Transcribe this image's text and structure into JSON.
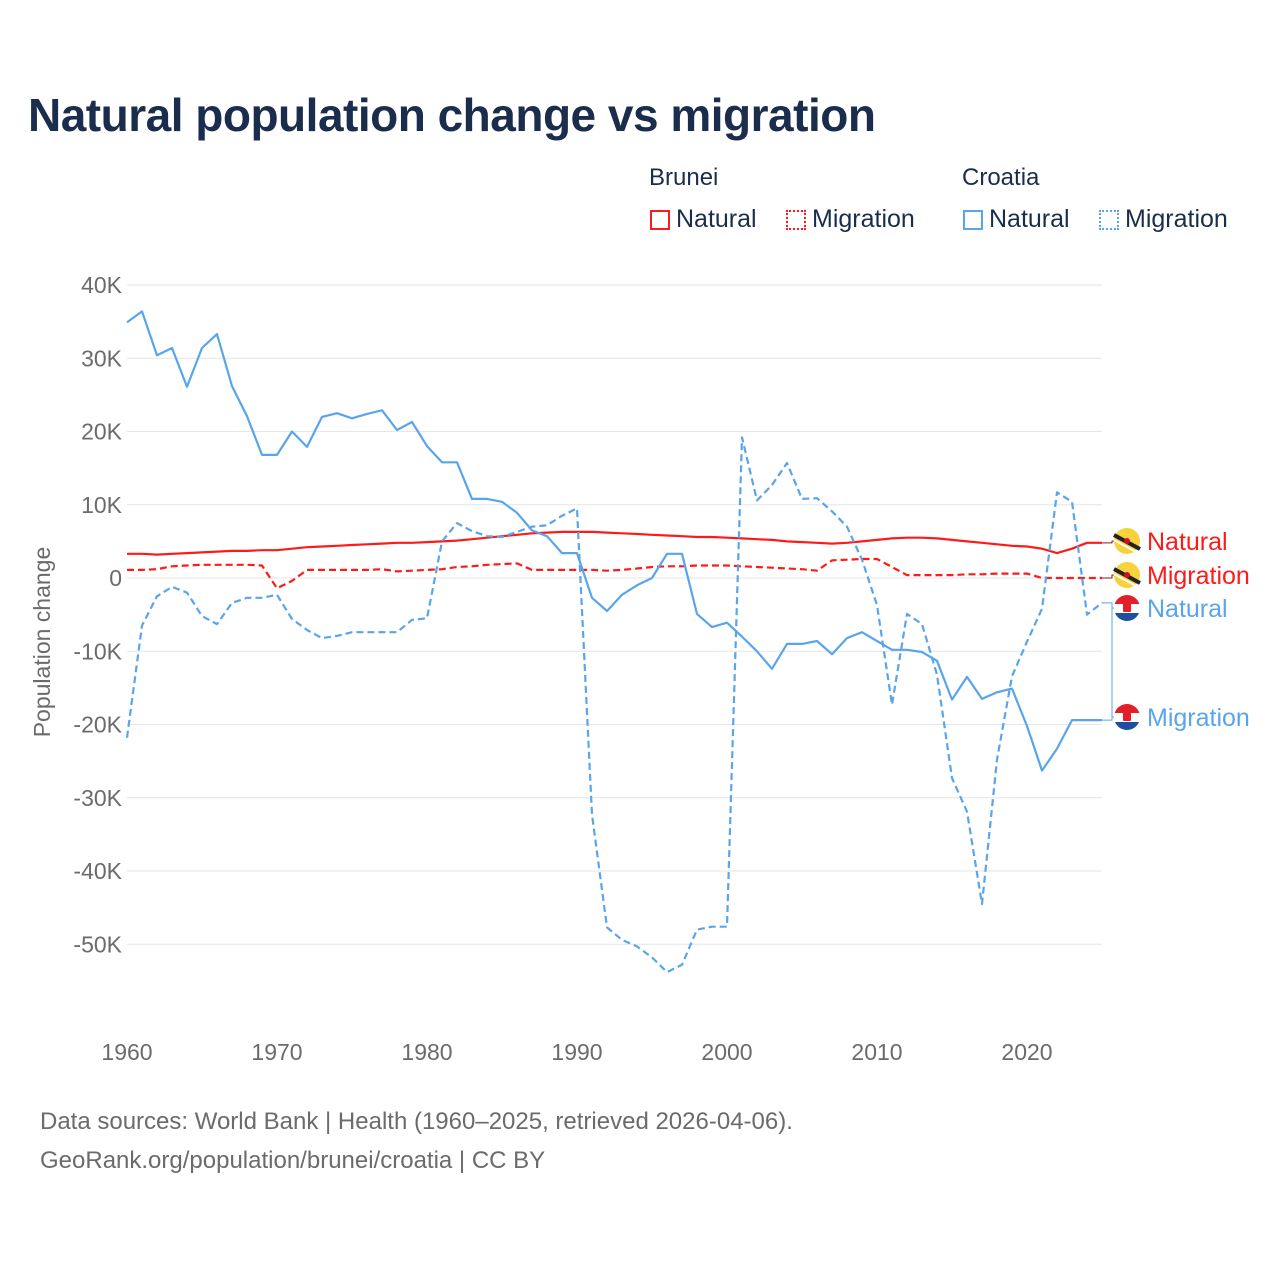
{
  "title": "Natural population change vs migration",
  "legend": {
    "groups": [
      {
        "name": "Brunei",
        "color": "#ff1a1a",
        "items": [
          "Natural",
          "Migration"
        ]
      },
      {
        "name": "Croatia",
        "color": "#5aa5ea",
        "items": [
          "Natural",
          "Migration"
        ]
      }
    ]
  },
  "footer": {
    "line1": "Data sources: World Bank | Health (1960–2025, retrieved 2026-04-06).",
    "line2": "GeoRank.org/population/brunei/croatia | CC BY"
  },
  "chart_data": {
    "type": "line",
    "title": "Natural population change vs migration",
    "xlabel": "",
    "ylabel": "Population change",
    "xlim": [
      1960,
      2025
    ],
    "ylim": [
      -55000,
      40000
    ],
    "x_ticks": [
      1960,
      1970,
      1980,
      1990,
      2000,
      2010,
      2020
    ],
    "y_ticks": [
      {
        "value": 40000,
        "label": "40K"
      },
      {
        "value": 30000,
        "label": "30K"
      },
      {
        "value": 20000,
        "label": "20K"
      },
      {
        "value": 10000,
        "label": "10K"
      },
      {
        "value": 0,
        "label": "0"
      },
      {
        "value": -10000,
        "label": "-10K"
      },
      {
        "value": -20000,
        "label": "-20K"
      },
      {
        "value": -30000,
        "label": "-30K"
      },
      {
        "value": -40000,
        "label": "-40K"
      },
      {
        "value": -50000,
        "label": "-50K"
      }
    ],
    "grid": true,
    "legend_position": "top-right",
    "x_start": 1960,
    "series": [
      {
        "country": "Brunei",
        "name": "Natural",
        "color": "#ff1a1a",
        "dash": false,
        "end_label": "Natural",
        "values_thousands": [
          3.3,
          3.3,
          3.2,
          3.3,
          3.4,
          3.5,
          3.6,
          3.7,
          3.7,
          3.8,
          3.8,
          4.0,
          4.2,
          4.3,
          4.4,
          4.5,
          4.6,
          4.7,
          4.8,
          4.8,
          4.9,
          5.0,
          5.1,
          5.3,
          5.5,
          5.7,
          5.9,
          6.1,
          6.2,
          6.3,
          6.3,
          6.3,
          6.2,
          6.1,
          6.0,
          5.9,
          5.8,
          5.7,
          5.6,
          5.6,
          5.5,
          5.4,
          5.3,
          5.2,
          5.0,
          4.9,
          4.8,
          4.7,
          4.8,
          5.0,
          5.2,
          5.4,
          5.5,
          5.5,
          5.4,
          5.2,
          5.0,
          4.8,
          4.6,
          4.4,
          4.3,
          4.0,
          3.4,
          4.0,
          4.8,
          4.8
        ]
      },
      {
        "country": "Brunei",
        "name": "Migration",
        "color": "#ff1a1a",
        "dash": true,
        "end_label": "Migration",
        "values_thousands": [
          1.1,
          1.1,
          1.2,
          1.6,
          1.7,
          1.8,
          1.8,
          1.8,
          1.8,
          1.7,
          -1.4,
          -0.4,
          1.1,
          1.1,
          1.1,
          1.1,
          1.1,
          1.2,
          0.9,
          1.0,
          1.1,
          1.2,
          1.5,
          1.6,
          1.8,
          1.9,
          2.0,
          1.1,
          1.1,
          1.1,
          1.1,
          1.1,
          1.0,
          1.1,
          1.3,
          1.5,
          1.6,
          1.6,
          1.7,
          1.7,
          1.7,
          1.6,
          1.5,
          1.4,
          1.3,
          1.2,
          1.0,
          2.4,
          2.5,
          2.6,
          2.6,
          1.5,
          0.4,
          0.4,
          0.4,
          0.4,
          0.5,
          0.5,
          0.6,
          0.6,
          0.6,
          0.0,
          0.0,
          0.0,
          0.0,
          0.0
        ]
      },
      {
        "country": "Croatia",
        "name": "Natural",
        "color": "#5aa5ea",
        "dash": false,
        "end_label": "Natural",
        "values_thousands": [
          34.9,
          36.4,
          30.4,
          31.4,
          26.1,
          31.4,
          33.3,
          26.2,
          22.1,
          16.8,
          16.8,
          20.0,
          17.9,
          22.0,
          22.5,
          21.8,
          22.4,
          22.9,
          20.2,
          21.3,
          18.0,
          15.8,
          15.8,
          10.8,
          10.8,
          10.4,
          8.9,
          6.5,
          5.7,
          3.4,
          3.4,
          -2.7,
          -4.5,
          -2.3,
          -1.0,
          0.0,
          3.3,
          3.3,
          -4.9,
          -6.7,
          -6.1,
          -8.0,
          -10.0,
          -12.4,
          -9.0,
          -9.0,
          -8.6,
          -10.4,
          -8.2,
          -7.4,
          -8.6,
          -9.8,
          -9.8,
          -10.1,
          -11.3,
          -16.6,
          -13.5,
          -16.5,
          -15.6,
          -15.1,
          -20.2,
          -26.3,
          -23.3,
          -19.4,
          -19.4,
          -19.4
        ]
      },
      {
        "country": "Croatia",
        "name": "Migration",
        "color": "#5aa5ea",
        "dash": true,
        "end_label": "Migration",
        "values_thousands": [
          -21.8,
          -6.5,
          -2.5,
          -1.2,
          -2.0,
          -5.2,
          -6.3,
          -3.4,
          -2.7,
          -2.7,
          -2.3,
          -5.6,
          -7.1,
          -8.2,
          -7.9,
          -7.4,
          -7.4,
          -7.4,
          -7.4,
          -5.7,
          -5.5,
          5.0,
          7.5,
          6.4,
          5.7,
          5.6,
          6.3,
          7.0,
          7.2,
          8.5,
          9.5,
          -32.3,
          -47.7,
          -49.4,
          -50.3,
          -51.8,
          -53.8,
          -52.8,
          -48.0,
          -47.6,
          -47.6,
          19.2,
          10.6,
          12.7,
          15.7,
          10.8,
          10.9,
          9.1,
          7.0,
          2.5,
          -3.7,
          -17.3,
          -4.9,
          -6.3,
          -13.2,
          -27.3,
          -31.9,
          -44.5,
          -24.8,
          -13.4,
          -8.7,
          -4.2,
          11.7,
          10.4,
          -5.0,
          -3.4
        ]
      }
    ]
  }
}
